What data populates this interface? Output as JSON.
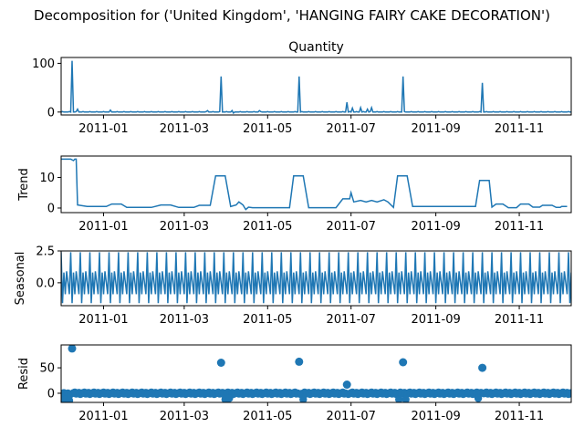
{
  "suptitle": "Decomposition for ('United Kingdom', 'HANGING FAIRY CAKE DECORATION')",
  "colors": {
    "line": "#1f77b4",
    "axis": "#000000",
    "zero": "#000000"
  },
  "chart_data": {
    "type": "line",
    "x_range": [
      "2010-12-01",
      "2011-12-09"
    ],
    "x_ticks": [
      "2011-01",
      "2011-03",
      "2011-05",
      "2011-07",
      "2011-09",
      "2011-11"
    ],
    "panels": [
      {
        "id": "observed",
        "title": "Quantity",
        "ylabel": "",
        "type": "line",
        "ylim": [
          -6,
          112
        ],
        "yticks": [
          0,
          100
        ],
        "ytick_labels": [
          "0",
          "100"
        ],
        "base": 0,
        "spikes": [
          {
            "x": "2010-12-09",
            "y": 105
          },
          {
            "x": "2010-12-13",
            "y": 6
          },
          {
            "x": "2011-01-06",
            "y": 4
          },
          {
            "x": "2011-03-18",
            "y": 3
          },
          {
            "x": "2011-03-28",
            "y": 73
          },
          {
            "x": "2011-04-05",
            "y": 3
          },
          {
            "x": "2011-04-06",
            "y": -2
          },
          {
            "x": "2011-04-25",
            "y": 3
          },
          {
            "x": "2011-05-24",
            "y": 73
          },
          {
            "x": "2011-06-28",
            "y": 20
          },
          {
            "x": "2011-07-02",
            "y": 8
          },
          {
            "x": "2011-07-08",
            "y": 9
          },
          {
            "x": "2011-07-13",
            "y": 6
          },
          {
            "x": "2011-07-16",
            "y": 9
          },
          {
            "x": "2011-08-08",
            "y": 73
          },
          {
            "x": "2011-10-05",
            "y": 60
          }
        ]
      },
      {
        "id": "trend",
        "title": "",
        "ylabel": "Trend",
        "type": "line",
        "ylim": [
          -1.5,
          17
        ],
        "yticks": [
          0,
          10
        ],
        "ytick_labels": [
          "0",
          "10"
        ],
        "points": [
          [
            "2010-12-01",
            16
          ],
          [
            "2010-12-08",
            16
          ],
          [
            "2010-12-10",
            15.5
          ],
          [
            "2010-12-11",
            16
          ],
          [
            "2010-12-12",
            16
          ],
          [
            "2010-12-13",
            1
          ],
          [
            "2010-12-20",
            0.5
          ],
          [
            "2010-12-27",
            0.5
          ],
          [
            "2011-01-03",
            0.5
          ],
          [
            "2011-01-07",
            1.3
          ],
          [
            "2011-01-14",
            1.3
          ],
          [
            "2011-01-18",
            0.2
          ],
          [
            "2011-02-05",
            0.2
          ],
          [
            "2011-02-12",
            1.0
          ],
          [
            "2011-02-19",
            1.0
          ],
          [
            "2011-02-25",
            0.2
          ],
          [
            "2011-03-08",
            0.2
          ],
          [
            "2011-03-12",
            0.9
          ],
          [
            "2011-03-20",
            0.9
          ],
          [
            "2011-03-24",
            10.5
          ],
          [
            "2011-03-31",
            10.5
          ],
          [
            "2011-04-04",
            0.5
          ],
          [
            "2011-04-08",
            1
          ],
          [
            "2011-04-10",
            2
          ],
          [
            "2011-04-13",
            1
          ],
          [
            "2011-04-15",
            -0.5
          ],
          [
            "2011-04-17",
            0.3
          ],
          [
            "2011-04-20",
            0.1
          ],
          [
            "2011-05-17",
            0.1
          ],
          [
            "2011-05-20",
            10.5
          ],
          [
            "2011-05-27",
            10.5
          ],
          [
            "2011-05-31",
            0.1
          ],
          [
            "2011-06-20",
            0.1
          ],
          [
            "2011-06-25",
            3
          ],
          [
            "2011-06-30",
            3
          ],
          [
            "2011-07-01",
            5
          ],
          [
            "2011-07-03",
            2
          ],
          [
            "2011-07-08",
            2.5
          ],
          [
            "2011-07-12",
            2
          ],
          [
            "2011-07-16",
            2.5
          ],
          [
            "2011-07-20",
            2
          ],
          [
            "2011-07-25",
            2.7
          ],
          [
            "2011-07-28",
            2
          ],
          [
            "2011-08-01",
            0.2
          ],
          [
            "2011-08-04",
            10.5
          ],
          [
            "2011-08-11",
            10.5
          ],
          [
            "2011-08-15",
            0.5
          ],
          [
            "2011-09-30",
            0.5
          ],
          [
            "2011-10-03",
            9
          ],
          [
            "2011-10-10",
            9
          ],
          [
            "2011-10-12",
            0.3
          ],
          [
            "2011-10-15",
            1.3
          ],
          [
            "2011-10-20",
            1.3
          ],
          [
            "2011-10-24",
            0.1
          ],
          [
            "2011-10-30",
            0.1
          ],
          [
            "2011-11-02",
            1.3
          ],
          [
            "2011-11-08",
            1.3
          ],
          [
            "2011-11-11",
            0.3
          ],
          [
            "2011-11-16",
            0.3
          ],
          [
            "2011-11-18",
            0.9
          ],
          [
            "2011-11-25",
            0.9
          ],
          [
            "2011-11-28",
            0.2
          ],
          [
            "2011-12-01",
            0.2
          ],
          [
            "2011-12-02",
            0.5
          ],
          [
            "2011-12-06",
            0.5
          ]
        ]
      },
      {
        "id": "seasonal",
        "title": "",
        "ylabel": "Seasonal",
        "type": "line",
        "ylim": [
          -1.8,
          2.5
        ],
        "yticks": [
          0,
          2.5
        ],
        "ytick_labels": [
          "0.0",
          "2.5"
        ],
        "period_days": 7,
        "start": "2010-12-01",
        "end": "2011-12-09",
        "pattern": [
          2.4,
          -1.6,
          0.8,
          -0.9,
          0.9,
          0.0,
          -0.9
        ]
      },
      {
        "id": "resid",
        "title": "",
        "ylabel": "Resid",
        "type": "scatter",
        "ylim": [
          -18,
          95
        ],
        "yticks": [
          0,
          50
        ],
        "ytick_labels": [
          "0",
          "50"
        ],
        "start": "2010-12-01",
        "end": "2011-12-09",
        "outliers": [
          {
            "x": "2010-12-09",
            "y": 88
          },
          {
            "x": "2011-03-28",
            "y": 60
          },
          {
            "x": "2011-05-24",
            "y": 62
          },
          {
            "x": "2011-06-28",
            "y": 17
          },
          {
            "x": "2011-08-08",
            "y": 61
          },
          {
            "x": "2011-10-05",
            "y": 50
          }
        ],
        "dips": [
          {
            "x": "2010-12-01",
            "y": -14
          },
          {
            "x": "2010-12-04",
            "y": -12
          },
          {
            "x": "2010-12-07",
            "y": -14
          },
          {
            "x": "2011-03-31",
            "y": -12
          },
          {
            "x": "2011-04-03",
            "y": -10
          },
          {
            "x": "2011-05-27",
            "y": -12
          },
          {
            "x": "2011-08-05",
            "y": -12
          },
          {
            "x": "2011-08-10",
            "y": -12
          },
          {
            "x": "2011-10-02",
            "y": -10
          }
        ]
      }
    ]
  }
}
